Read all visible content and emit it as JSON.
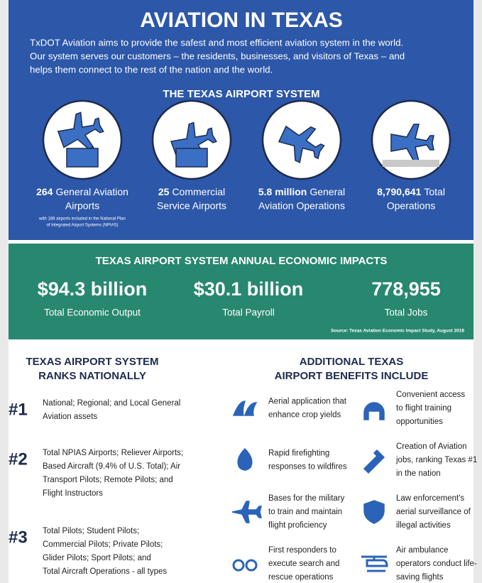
{
  "header": {
    "title": "AVIATION IN TEXAS",
    "intro_lines": [
      "TxDOT Aviation aims to provide the safest and most efficient aviation system in the world.",
      "Our system serves our customers – the residents, businesses, and visitors of Texas – and",
      "helps them connect to the rest of the nation and the world."
    ]
  },
  "airport_system": {
    "title": "THE TEXAS AIRPORT SYSTEM",
    "stats": [
      {
        "number": "264",
        "lines": [
          "General Aviation",
          "Airports"
        ],
        "note_lines": [
          "with 186 airports included in the National Plan",
          "of Integrated Airport Systems (NPIAS)"
        ]
      },
      {
        "number": "25",
        "lines": [
          "Commercial",
          "Service Airports"
        ]
      },
      {
        "number": "5.8 million",
        "lines": [
          "General",
          "Aviation Operations"
        ]
      },
      {
        "number": "8,790,641",
        "lines": [
          "Total",
          "Operations"
        ]
      }
    ]
  },
  "economic_impacts": {
    "title": "TEXAS AIRPORT SYSTEM ANNUAL ECONOMIC IMPACTS",
    "items": [
      {
        "value": "$94.3 billion",
        "label": "Total Economic Output"
      },
      {
        "value": "$30.1 billion",
        "label": "Total Payroll"
      },
      {
        "value": "778,955",
        "label": "Total Jobs"
      }
    ],
    "source": "Source: Texas Aviation Economic Impact Study, August 2018"
  },
  "rankings": {
    "title_lines": [
      "TEXAS AIRPORT SYSTEM",
      "RANKS NATIONALLY"
    ],
    "items": [
      {
        "rank": "#1",
        "lines": [
          "National; Regional; and Local General",
          "Aviation assets"
        ]
      },
      {
        "rank": "#2",
        "lines": [
          "Total NPIAS Airports; Reliever Airports;",
          "Based Aircraft (9.4% of U.S. Total); Air",
          "Transport Pilots; Remote Pilots; and",
          "Flight Instructors"
        ]
      },
      {
        "rank": "#3",
        "lines": [
          "Total Pilots; Student Pilots;",
          "Commercial Pilots; Private Pilots;",
          "Glider Pilots; Sport Pilots; and",
          "Total Aircraft Operations - all types"
        ]
      }
    ]
  },
  "benefits": {
    "title_lines": [
      "ADDITIONAL TEXAS",
      "AIRPORT BENEFITS INCLUDE"
    ],
    "items": [
      {
        "lines": [
          "Aerial application that",
          "enhance crop yields"
        ]
      },
      {
        "lines": [
          "Convenient access",
          "to flight training",
          "opportunities"
        ]
      },
      {
        "lines": [
          "Rapid firefighting",
          "responses to wildfires"
        ]
      },
      {
        "lines": [
          "Creation of Aviation",
          "jobs, ranking Texas #1",
          "in the nation"
        ]
      },
      {
        "lines": [
          "Bases for the military",
          "to train and maintain",
          "flight proficiency"
        ]
      },
      {
        "lines": [
          "Law enforcement's",
          "aerial surveillance of",
          "illegal activities"
        ]
      },
      {
        "lines": [
          "First responders to",
          "execute search and",
          "rescue operations"
        ]
      },
      {
        "lines": [
          "Air ambulance",
          "operators conduct life-",
          "saving flights"
        ]
      }
    ]
  }
}
